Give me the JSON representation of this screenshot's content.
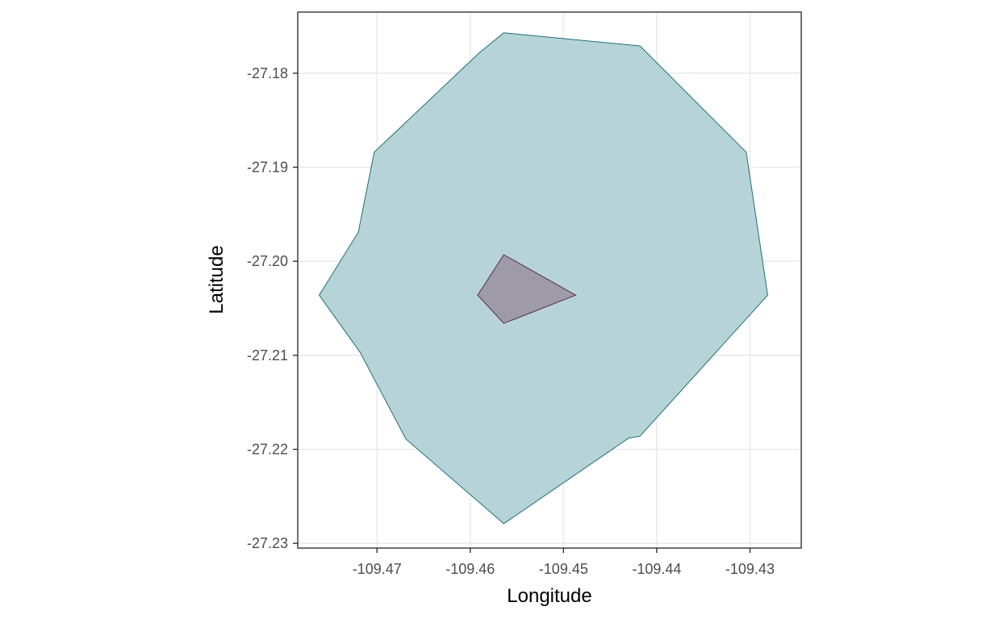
{
  "chart_data": {
    "type": "map",
    "title": "",
    "xlabel": "Longitude",
    "ylabel": "Latitude",
    "xlim": [
      -109.4785,
      -109.4245
    ],
    "ylim": [
      -27.2305,
      -27.1735
    ],
    "grid": true,
    "x_ticks": [
      {
        "value": -109.47,
        "label": "-109.47"
      },
      {
        "value": -109.46,
        "label": "-109.46"
      },
      {
        "value": -109.45,
        "label": "-109.45"
      },
      {
        "value": -109.44,
        "label": "-109.44"
      },
      {
        "value": -109.43,
        "label": "-109.43"
      }
    ],
    "y_ticks": [
      {
        "value": -27.18,
        "label": "-27.18"
      },
      {
        "value": -27.19,
        "label": "-27.19"
      },
      {
        "value": -27.2,
        "label": "-27.20"
      },
      {
        "value": -27.21,
        "label": "-27.21"
      },
      {
        "value": -27.22,
        "label": "-27.22"
      },
      {
        "value": -27.23,
        "label": "-27.23"
      }
    ],
    "polygons": [
      {
        "fill": "#b6d4d7",
        "stroke": "#1f6f78",
        "points": [
          [
            -109.4564,
            -27.1757
          ],
          [
            -109.4418,
            -27.1771
          ],
          [
            -109.4304,
            -27.1884
          ],
          [
            -109.4281,
            -27.2036
          ],
          [
            -109.4418,
            -27.2186
          ],
          [
            -109.443,
            -27.2188
          ],
          [
            -109.4564,
            -27.2279
          ],
          [
            -109.4669,
            -27.2189
          ],
          [
            -109.4718,
            -27.2097
          ],
          [
            -109.4762,
            -27.2036
          ],
          [
            -109.472,
            -27.1969
          ],
          [
            -109.4703,
            -27.1884
          ],
          [
            -109.4591,
            -27.1779
          ]
        ]
      },
      {
        "fill": "#9e9aa8",
        "stroke": "#5a2a4a",
        "points": [
          [
            -109.4564,
            -27.1993
          ],
          [
            -109.4487,
            -27.2036
          ],
          [
            -109.4564,
            -27.2066
          ],
          [
            -109.4592,
            -27.2036
          ]
        ]
      }
    ]
  }
}
